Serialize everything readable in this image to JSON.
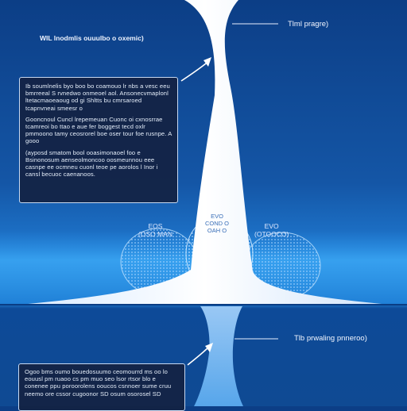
{
  "top_right_label": "Tlml pragre)",
  "bottom_right_label": "Tlb prwaling pnneroo)",
  "left_header": "WIL lnodmlis ouuulbo o oxemic)",
  "top_panel": {
    "paragraphs": [
      "Ib soumlnelis byo boo bo coamouo lr nbs a vesc eeu bmrreeal S rvnedwo onmeoel aol. Ansonecvmaplonl ltetacmaoeaoug od gi Shltts bu cmrsaroed tcapnvneai smeesr o",
      "Gooncnoul Cuncl lrepemeuan Cuonc oi cxnosrrae tcamreoi bo ttao e aue fer boggest tecd oxlr pmmoono tamy ceosrorel boe oser tour foe rusnpe. A gooo",
      "(ayposd smatom bool ooasimonaoel foo e Bsinonosum aenseolmoncoo oosmeunnou eee casnpe ee ocmneu cuonl teoe pe aorolos l Inor i cansl becuoc caenanoos."
    ]
  },
  "bottom_panel": {
    "paragraphs": [
      "Ogoo bms oumo bouedosuumo ceomourrd ms oo lo eouusl pm ruaoo cs pm muo seo lsor rtsor blo e conenee ppu poroorolens ooucos csnnoer sume cruu neemo ore cssor cugoonor SD osum osorosel SD"
    ]
  },
  "lobe_left": {
    "line1": "EOS",
    "line2": "(OSO MAN"
  },
  "lobe_right": {
    "line1": "EVO",
    "line2": "(OTOOCO)"
  },
  "lobe_center": {
    "line1": "EVO",
    "line2": "COND O",
    "line3": "OAH O"
  },
  "colors": {
    "background_top": "#0c3e86",
    "background_band": "#2a8fe3",
    "funnel_white": "#ffffff",
    "panel_fill": "#142242",
    "panel_border": "#c7d9f2",
    "mesh_blue": "#8cc6ff"
  },
  "icons": [
    "arrow-icon",
    "arrow-icon"
  ]
}
